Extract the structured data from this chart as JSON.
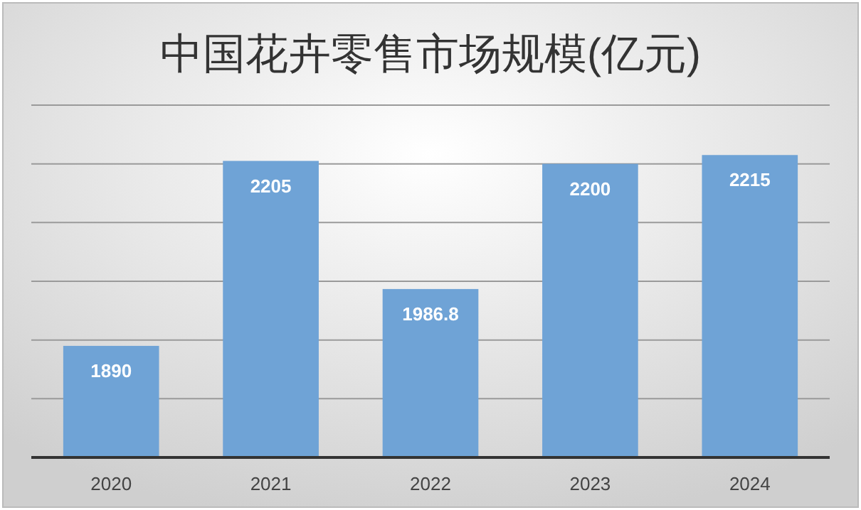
{
  "chart_data": {
    "type": "bar",
    "title": "中国花卉零售市场规模(亿元)",
    "categories": [
      "2020",
      "2021",
      "2022",
      "2023",
      "2024"
    ],
    "values": [
      1890,
      2205,
      1986.8,
      2200,
      2215
    ],
    "color": "#6fa3d6",
    "ylim": [
      1700,
      2300
    ],
    "yticks": [
      {
        "value": 1700,
        "label": null
      },
      {
        "value": 1800,
        "label": null
      },
      {
        "value": 1900,
        "label": null
      },
      {
        "value": 2000,
        "label": null
      },
      {
        "value": 2100,
        "label": null
      },
      {
        "value": 2200,
        "label": null
      },
      {
        "value": 2300,
        "label": null
      }
    ],
    "grid": "y",
    "data_labels": true,
    "tick_labels": "x"
  }
}
